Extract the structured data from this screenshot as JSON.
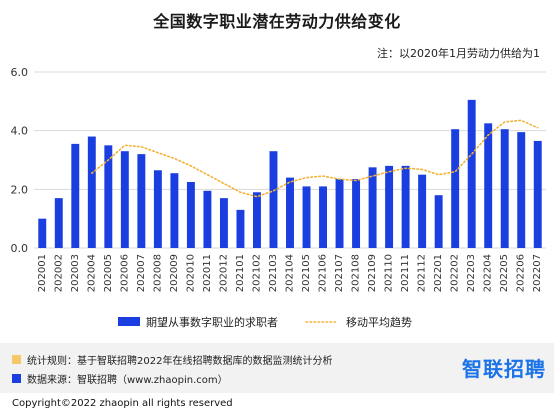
{
  "header": {
    "title": "全国数字职业潜在劳动力供给变化",
    "note": "注：以2020年1月劳动力供给为1"
  },
  "chart_data": {
    "type": "bar",
    "categories": [
      "202001",
      "202002",
      "202003",
      "202004",
      "202005",
      "202006",
      "202007",
      "202008",
      "202009",
      "202010",
      "202011",
      "202012",
      "202101",
      "202102",
      "202103",
      "202104",
      "202105",
      "202106",
      "202107",
      "202108",
      "202109",
      "202110",
      "202111",
      "202112",
      "202201",
      "202202",
      "202203",
      "202204",
      "202205",
      "202206",
      "202207"
    ],
    "series": [
      {
        "name": "期望从事数字职业的求职者",
        "type": "bar",
        "color": "#1a3ee0",
        "values": [
          1.0,
          1.7,
          3.55,
          3.8,
          3.5,
          3.3,
          3.2,
          2.65,
          2.55,
          2.25,
          1.95,
          1.7,
          1.3,
          1.9,
          3.3,
          2.4,
          2.1,
          2.1,
          2.35,
          2.35,
          2.75,
          2.8,
          2.8,
          2.5,
          1.8,
          4.05,
          5.05,
          4.25,
          4.05,
          3.95,
          3.65
        ]
      },
      {
        "name": "移动平均趋势",
        "type": "line",
        "style": "dotted",
        "color": "#f2b233",
        "values": [
          null,
          null,
          null,
          2.55,
          3.0,
          3.5,
          3.45,
          3.25,
          3.05,
          2.8,
          2.5,
          2.2,
          1.9,
          1.75,
          1.95,
          2.25,
          2.4,
          2.45,
          2.35,
          2.3,
          2.45,
          2.6,
          2.72,
          2.68,
          2.5,
          2.6,
          3.2,
          3.85,
          4.3,
          4.35,
          4.1
        ]
      }
    ],
    "yticks": [
      "0.0",
      "2.0",
      "4.0",
      "6.0"
    ],
    "ylim": [
      0,
      6
    ],
    "grid": true,
    "legend": "bottom"
  },
  "footer": {
    "rule_label": "统计规则：基于智联招聘2022年在线招聘数据库的数据监测统计分析",
    "source_label": "数据来源：智联招聘（www.zhaopin.com）",
    "brand": "智联招聘",
    "copyright": "Copyright©2022 zhaopin all rights reserved",
    "rule_color": "#f7c86a",
    "source_color": "#1a3ee0"
  }
}
